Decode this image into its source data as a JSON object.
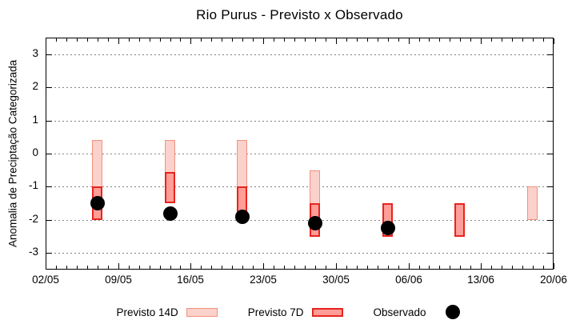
{
  "title": "Rio Purus - Previsto x Observado",
  "legend": {
    "previsto_14d": "Previsto 14D",
    "previsto_7d": "Previsto 7D",
    "observado": "Observado"
  },
  "colors": {
    "previsto_14d_fill": "#fbd1cb",
    "previsto_14d_border": "#f2917f",
    "previsto_7d_fill": "#ff9d97",
    "previsto_7d_border": "#e8231e",
    "observado": "#000000",
    "grid": "#848484",
    "axis": "#000000"
  },
  "chart_data": {
    "type": "bar",
    "title": "Rio Purus - Previsto x Observado",
    "xlabel": "",
    "ylabel": "Anomalia de Preciptação Categorizada",
    "ylim": [
      -3.5,
      3.5
    ],
    "yticks": [
      3,
      2,
      1,
      0,
      -1,
      -2,
      -3
    ],
    "grid": "horizontal-dotted",
    "legend_position": "bottom",
    "x_axis": {
      "tick_labels": [
        "02/05",
        "09/05",
        "16/05",
        "23/05",
        "30/05",
        "06/06",
        "13/06",
        "20/06"
      ],
      "tick_days": [
        0,
        7,
        14,
        21,
        28,
        35,
        42,
        49
      ],
      "minor_tick_every_days": 1,
      "total_days": 49
    },
    "series": [
      {
        "name": "Previsto 14D",
        "type": "range-bar",
        "bars": [
          {
            "date": "07/05",
            "day": 5,
            "high": 0.4,
            "low": -2.0
          },
          {
            "date": "14/05",
            "day": 12,
            "high": 0.4,
            "low": -1.5
          },
          {
            "date": "21/05",
            "day": 19,
            "high": 0.4,
            "low": -2.0
          },
          {
            "date": "28/05",
            "day": 26,
            "high": -0.5,
            "low": -2.5
          },
          {
            "date": "18/06",
            "day": 47,
            "high": -1.0,
            "low": -2.0
          }
        ]
      },
      {
        "name": "Previsto 7D",
        "type": "range-bar",
        "bars": [
          {
            "date": "07/05",
            "day": 5,
            "high": -1.0,
            "low": -2.0
          },
          {
            "date": "14/05",
            "day": 12,
            "high": -0.55,
            "low": -1.5
          },
          {
            "date": "21/05",
            "day": 19,
            "high": -1.0,
            "low": -2.0
          },
          {
            "date": "28/05",
            "day": 26,
            "high": -1.5,
            "low": -2.5
          },
          {
            "date": "04/06",
            "day": 33,
            "high": -1.5,
            "low": -2.5
          },
          {
            "date": "11/06",
            "day": 40,
            "high": -1.5,
            "low": -2.5
          }
        ]
      },
      {
        "name": "Observado",
        "type": "scatter",
        "points": [
          {
            "date": "07/05",
            "day": 5,
            "value": -1.5
          },
          {
            "date": "14/05",
            "day": 12,
            "value": -1.8
          },
          {
            "date": "21/05",
            "day": 19,
            "value": -1.9
          },
          {
            "date": "28/05",
            "day": 26,
            "value": -2.1
          },
          {
            "date": "04/06",
            "day": 33,
            "value": -2.25
          }
        ]
      }
    ]
  }
}
